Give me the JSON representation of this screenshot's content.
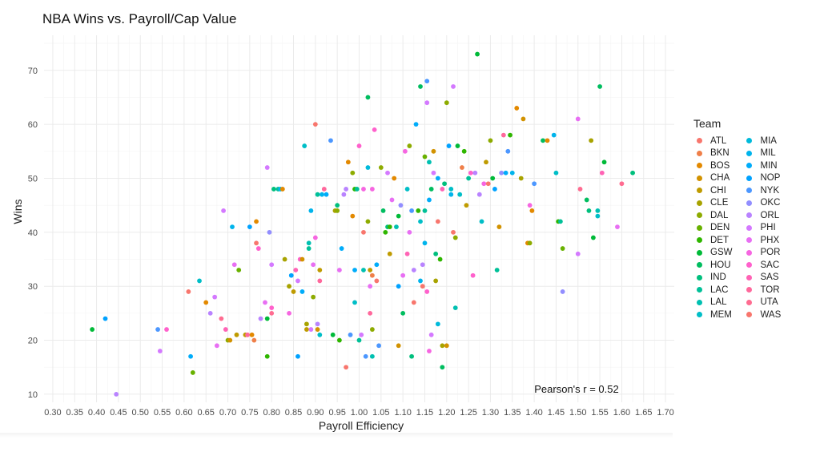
{
  "chart_data": {
    "type": "scatter",
    "title": "NBA Wins vs. Payroll/Cap Value",
    "xlabel": "Payroll Efficiency",
    "ylabel": "Wins",
    "xlim": [
      0.28,
      1.72
    ],
    "ylim": [
      8.5,
      76.5
    ],
    "xticks": [
      "0.30",
      "0.35",
      "0.40",
      "0.45",
      "0.50",
      "0.55",
      "0.60",
      "0.65",
      "0.70",
      "0.75",
      "0.80",
      "0.85",
      "0.90",
      "0.95",
      "1.00",
      "1.05",
      "1.10",
      "1.15",
      "1.20",
      "1.25",
      "1.30",
      "1.35",
      "1.40",
      "1.45",
      "1.50",
      "1.55",
      "1.60",
      "1.65",
      "1.70"
    ],
    "yticks": [
      "10",
      "20",
      "30",
      "40",
      "50",
      "60",
      "70"
    ],
    "grid": true,
    "legend_position": "right",
    "legend_title": "Team",
    "annotation": "Pearson's r = 0.52",
    "teams": [
      "ATL",
      "BKN",
      "BOS",
      "CHA",
      "CHI",
      "CLE",
      "DAL",
      "DEN",
      "DET",
      "GSW",
      "HOU",
      "IND",
      "LAC",
      "LAL",
      "MEM",
      "MIA",
      "MIL",
      "MIN",
      "NOP",
      "NYK",
      "OKC",
      "ORL",
      "PHI",
      "PHX",
      "POR",
      "SAC",
      "SAS",
      "TOR",
      "UTA",
      "WAS"
    ],
    "colors": [
      "#F8766D",
      "#EF7F49",
      "#E38900",
      "#D29200",
      "#BF9B00",
      "#A8A300",
      "#8DAB00",
      "#68B100",
      "#2FB600",
      "#00BA38",
      "#00BD5F",
      "#00BF7D",
      "#00C098",
      "#00C0B1",
      "#00BEC7",
      "#00BADB",
      "#00B4EC",
      "#00ACFA",
      "#00A2FF",
      "#4C97FF",
      "#928EFF",
      "#B983FF",
      "#D479FF",
      "#E86FF3",
      "#F666E1",
      "#FF61CC",
      "#FF63B5",
      "#FF689C",
      "#FF6C91",
      "#F8766D"
    ],
    "points": [
      [
        0.39,
        22,
        9
      ],
      [
        0.42,
        24,
        18
      ],
      [
        0.445,
        10,
        21
      ],
      [
        0.54,
        22,
        19
      ],
      [
        0.545,
        18,
        22
      ],
      [
        0.56,
        22,
        25
      ],
      [
        0.61,
        29,
        0
      ],
      [
        0.615,
        17,
        17
      ],
      [
        0.62,
        14,
        7
      ],
      [
        0.635,
        31,
        14
      ],
      [
        0.65,
        27,
        2
      ],
      [
        0.66,
        25,
        21
      ],
      [
        0.67,
        28,
        22
      ],
      [
        0.675,
        19,
        23
      ],
      [
        0.685,
        24,
        28
      ],
      [
        0.69,
        44,
        22
      ],
      [
        0.695,
        22,
        26
      ],
      [
        0.7,
        20,
        6
      ],
      [
        0.705,
        20,
        3
      ],
      [
        0.71,
        41,
        16
      ],
      [
        0.715,
        34,
        23
      ],
      [
        0.72,
        21,
        4
      ],
      [
        0.725,
        33,
        7
      ],
      [
        0.74,
        21,
        4
      ],
      [
        0.745,
        21,
        27
      ],
      [
        0.75,
        41,
        18
      ],
      [
        0.755,
        21,
        2
      ],
      [
        0.76,
        20,
        1
      ],
      [
        0.765,
        38,
        0
      ],
      [
        0.765,
        42,
        2
      ],
      [
        0.77,
        37,
        25
      ],
      [
        0.775,
        24,
        21
      ],
      [
        0.785,
        27,
        23
      ],
      [
        0.79,
        17,
        8
      ],
      [
        0.79,
        24,
        9
      ],
      [
        0.79,
        52,
        22
      ],
      [
        0.795,
        40,
        20
      ],
      [
        0.8,
        26,
        25
      ],
      [
        0.8,
        25,
        28
      ],
      [
        0.8,
        34,
        22
      ],
      [
        0.805,
        48,
        11
      ],
      [
        0.815,
        48,
        12
      ],
      [
        0.82,
        48,
        16
      ],
      [
        0.825,
        48,
        2
      ],
      [
        0.83,
        35,
        5
      ],
      [
        0.84,
        25,
        24
      ],
      [
        0.84,
        30,
        5
      ],
      [
        0.845,
        32,
        18
      ],
      [
        0.85,
        29,
        4
      ],
      [
        0.855,
        33,
        26
      ],
      [
        0.86,
        17,
        18
      ],
      [
        0.86,
        31,
        22
      ],
      [
        0.865,
        35,
        25
      ],
      [
        0.87,
        35,
        3
      ],
      [
        0.87,
        29,
        17
      ],
      [
        0.875,
        56,
        14
      ],
      [
        0.88,
        22,
        4
      ],
      [
        0.88,
        23,
        5
      ],
      [
        0.885,
        37,
        12
      ],
      [
        0.885,
        38,
        13
      ],
      [
        0.89,
        44,
        16
      ],
      [
        0.89,
        22,
        22
      ],
      [
        0.895,
        28,
        6
      ],
      [
        0.895,
        34,
        23
      ],
      [
        0.9,
        60,
        0
      ],
      [
        0.9,
        39,
        24
      ],
      [
        0.905,
        22,
        3
      ],
      [
        0.905,
        47,
        12
      ],
      [
        0.905,
        23,
        21
      ],
      [
        0.91,
        31,
        27
      ],
      [
        0.91,
        21,
        14
      ],
      [
        0.91,
        33,
        4
      ],
      [
        0.915,
        47,
        16
      ],
      [
        0.92,
        48,
        27
      ],
      [
        0.925,
        47,
        17
      ],
      [
        0.935,
        57,
        19
      ],
      [
        0.94,
        21,
        9
      ],
      [
        0.945,
        44,
        5
      ],
      [
        0.95,
        44,
        6
      ],
      [
        0.95,
        45,
        11
      ],
      [
        0.955,
        33,
        23
      ],
      [
        0.96,
        37,
        17
      ],
      [
        0.955,
        20,
        8
      ],
      [
        0.965,
        47,
        21
      ],
      [
        0.97,
        15,
        0
      ],
      [
        0.97,
        48,
        21
      ],
      [
        0.975,
        53,
        2
      ],
      [
        0.98,
        21,
        19
      ],
      [
        0.985,
        51,
        6
      ],
      [
        0.985,
        43,
        2
      ],
      [
        0.99,
        48,
        8
      ],
      [
        0.99,
        33,
        17
      ],
      [
        0.99,
        27,
        14
      ],
      [
        0.995,
        48,
        12
      ],
      [
        1.0,
        56,
        25
      ],
      [
        1.0,
        20,
        12
      ],
      [
        1.005,
        21,
        22
      ],
      [
        1.01,
        33,
        13
      ],
      [
        1.01,
        48,
        24
      ],
      [
        1.01,
        40,
        29
      ],
      [
        1.015,
        17,
        19
      ],
      [
        1.02,
        65,
        10
      ],
      [
        1.02,
        42,
        6
      ],
      [
        1.02,
        52,
        15
      ],
      [
        1.025,
        25,
        27
      ],
      [
        1.025,
        33,
        4
      ],
      [
        1.025,
        30,
        23
      ],
      [
        1.03,
        17,
        13
      ],
      [
        1.03,
        22,
        6
      ],
      [
        1.03,
        48,
        24
      ],
      [
        1.03,
        32,
        1
      ],
      [
        1.035,
        59,
        25
      ],
      [
        1.04,
        31,
        0
      ],
      [
        1.04,
        34,
        17
      ],
      [
        1.045,
        19,
        19
      ],
      [
        1.05,
        52,
        6
      ],
      [
        1.055,
        44,
        10
      ],
      [
        1.06,
        40,
        8
      ],
      [
        1.065,
        41,
        11
      ],
      [
        1.065,
        51,
        22
      ],
      [
        1.07,
        36,
        4
      ],
      [
        1.07,
        41,
        8
      ],
      [
        1.075,
        46,
        23
      ],
      [
        1.08,
        50,
        2
      ],
      [
        1.085,
        41,
        13
      ],
      [
        1.09,
        43,
        9
      ],
      [
        1.09,
        30,
        18
      ],
      [
        1.09,
        19,
        3
      ],
      [
        1.095,
        45,
        20
      ],
      [
        1.1,
        25,
        10
      ],
      [
        1.1,
        32,
        23
      ],
      [
        1.105,
        55,
        24
      ],
      [
        1.11,
        36,
        26
      ],
      [
        1.11,
        48,
        14
      ],
      [
        1.115,
        56,
        6
      ],
      [
        1.115,
        40,
        23
      ],
      [
        1.12,
        44,
        19
      ],
      [
        1.12,
        17,
        11
      ],
      [
        1.125,
        27,
        29
      ],
      [
        1.125,
        33,
        21
      ],
      [
        1.13,
        60,
        17
      ],
      [
        1.135,
        44,
        8
      ],
      [
        1.14,
        67,
        10
      ],
      [
        1.14,
        42,
        14
      ],
      [
        1.14,
        31,
        16
      ],
      [
        1.145,
        30,
        29
      ],
      [
        1.145,
        34,
        21
      ],
      [
        1.15,
        54,
        7
      ],
      [
        1.15,
        44,
        12
      ],
      [
        1.15,
        38,
        16
      ],
      [
        1.155,
        64,
        22
      ],
      [
        1.155,
        68,
        19
      ],
      [
        1.155,
        29,
        25
      ],
      [
        1.16,
        53,
        13
      ],
      [
        1.16,
        18,
        24
      ],
      [
        1.16,
        46,
        17
      ],
      [
        1.165,
        21,
        22
      ],
      [
        1.165,
        48,
        10
      ],
      [
        1.17,
        55,
        3
      ],
      [
        1.17,
        51,
        22
      ],
      [
        1.175,
        36,
        11
      ],
      [
        1.175,
        31,
        5
      ],
      [
        1.18,
        42,
        0
      ],
      [
        1.18,
        50,
        17
      ],
      [
        1.18,
        23,
        15
      ],
      [
        1.185,
        35,
        8
      ],
      [
        1.19,
        19,
        5
      ],
      [
        1.19,
        15,
        10
      ],
      [
        1.19,
        48,
        26
      ],
      [
        1.195,
        49,
        11
      ],
      [
        1.2,
        19,
        3
      ],
      [
        1.2,
        64,
        6
      ],
      [
        1.205,
        56,
        18
      ],
      [
        1.21,
        47,
        16
      ],
      [
        1.21,
        48,
        14
      ],
      [
        1.215,
        67,
        22
      ],
      [
        1.215,
        40,
        29
      ],
      [
        1.22,
        39,
        6
      ],
      [
        1.22,
        26,
        13
      ],
      [
        1.225,
        56,
        9
      ],
      [
        1.23,
        47,
        14
      ],
      [
        1.235,
        52,
        1
      ],
      [
        1.24,
        55,
        8
      ],
      [
        1.245,
        45,
        4
      ],
      [
        1.25,
        50,
        12
      ],
      [
        1.255,
        51,
        25
      ],
      [
        1.26,
        32,
        25
      ],
      [
        1.265,
        51,
        21
      ],
      [
        1.27,
        73,
        9
      ],
      [
        1.275,
        47,
        21
      ],
      [
        1.28,
        42,
        14
      ],
      [
        1.285,
        49,
        24
      ],
      [
        1.29,
        53,
        4
      ],
      [
        1.295,
        49,
        0
      ],
      [
        1.3,
        57,
        6
      ],
      [
        1.305,
        50,
        9
      ],
      [
        1.31,
        48,
        18
      ],
      [
        1.315,
        33,
        12
      ],
      [
        1.32,
        41,
        3
      ],
      [
        1.325,
        51,
        20
      ],
      [
        1.33,
        58,
        27
      ],
      [
        1.335,
        51,
        17
      ],
      [
        1.34,
        55,
        19
      ],
      [
        1.345,
        58,
        8
      ],
      [
        1.35,
        51,
        16
      ],
      [
        1.36,
        63,
        2
      ],
      [
        1.37,
        50,
        5
      ],
      [
        1.375,
        61,
        3
      ],
      [
        1.385,
        38,
        2
      ],
      [
        1.39,
        38,
        6
      ],
      [
        1.39,
        45,
        24
      ],
      [
        1.395,
        44,
        2
      ],
      [
        1.4,
        49,
        19
      ],
      [
        1.42,
        57,
        10
      ],
      [
        1.43,
        57,
        2
      ],
      [
        1.445,
        58,
        16
      ],
      [
        1.45,
        51,
        14
      ],
      [
        1.455,
        42,
        8
      ],
      [
        1.46,
        42,
        12
      ],
      [
        1.465,
        37,
        7
      ],
      [
        1.465,
        29,
        20
      ],
      [
        1.5,
        61,
        23
      ],
      [
        1.5,
        36,
        22
      ],
      [
        1.505,
        48,
        28
      ],
      [
        1.52,
        46,
        10
      ],
      [
        1.525,
        44,
        11
      ],
      [
        1.53,
        57,
        5
      ],
      [
        1.535,
        39,
        9
      ],
      [
        1.545,
        44,
        13
      ],
      [
        1.545,
        43,
        14
      ],
      [
        1.55,
        67,
        10
      ],
      [
        1.555,
        51,
        26
      ],
      [
        1.56,
        53,
        9
      ],
      [
        1.59,
        41,
        23
      ],
      [
        1.6,
        49,
        28
      ],
      [
        1.625,
        51,
        11
      ]
    ]
  }
}
